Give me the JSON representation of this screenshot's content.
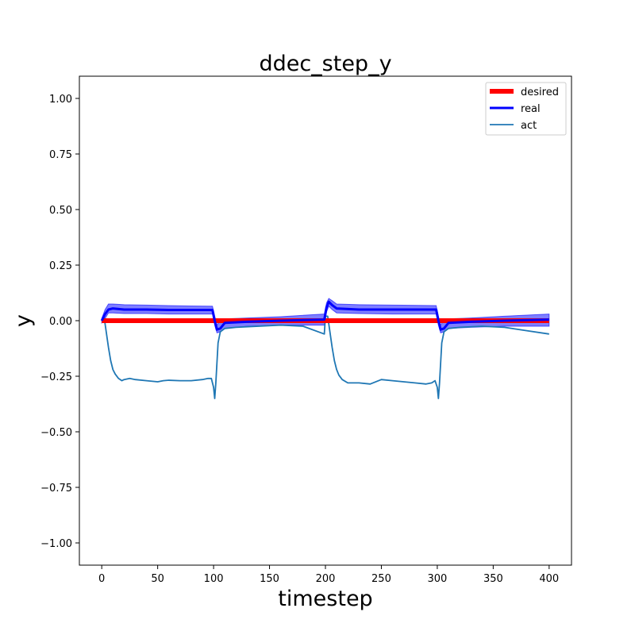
{
  "chart_data": {
    "type": "line",
    "title": "ddec_step_y",
    "xlabel": "timestep",
    "ylabel": "y",
    "xlim": [
      -20,
      420
    ],
    "ylim": [
      -1.1,
      1.1
    ],
    "xticks": [
      0,
      50,
      100,
      150,
      200,
      250,
      300,
      350,
      400
    ],
    "yticks": [
      -1.0,
      -0.75,
      -0.5,
      -0.25,
      0.0,
      0.25,
      0.5,
      0.75,
      1.0
    ],
    "xtick_labels": [
      "0",
      "50",
      "100",
      "150",
      "200",
      "250",
      "300",
      "350",
      "400"
    ],
    "ytick_labels": [
      "−1.00",
      "−0.75",
      "−0.50",
      "−0.25",
      "0.00",
      "0.25",
      "0.50",
      "0.75",
      "1.00"
    ],
    "legend_position": "upper right",
    "grid": false,
    "series": [
      {
        "name": "desired",
        "color": "#ff0000",
        "x": [
          0,
          400
        ],
        "y": [
          0,
          0
        ]
      },
      {
        "name": "real",
        "color": "#0000ff",
        "x": [
          0,
          3,
          6,
          10,
          20,
          40,
          60,
          80,
          99,
          101,
          103,
          106,
          110,
          130,
          160,
          199,
          201,
          203,
          206,
          210,
          230,
          260,
          299,
          301,
          303,
          306,
          310,
          330,
          360,
          400
        ],
        "y": [
          0.0,
          0.03,
          0.05,
          0.055,
          0.05,
          0.05,
          0.048,
          0.048,
          0.048,
          0.0,
          -0.04,
          -0.035,
          -0.01,
          -0.005,
          0.0,
          0.005,
          0.06,
          0.085,
          0.07,
          0.055,
          0.05,
          0.05,
          0.05,
          0.0,
          -0.04,
          -0.035,
          -0.01,
          -0.005,
          0.0,
          0.005
        ]
      },
      {
        "name": "real_band",
        "color": "#0000ff",
        "x": [
          0,
          3,
          6,
          10,
          20,
          40,
          60,
          80,
          99,
          101,
          103,
          106,
          110,
          130,
          160,
          199,
          201,
          203,
          206,
          210,
          230,
          260,
          299,
          301,
          303,
          306,
          310,
          330,
          360,
          400
        ],
        "upper": [
          0.01,
          0.05,
          0.075,
          0.075,
          0.072,
          0.07,
          0.068,
          0.066,
          0.065,
          0.02,
          -0.02,
          0.005,
          0.008,
          0.012,
          0.018,
          0.03,
          0.08,
          0.1,
          0.09,
          0.075,
          0.072,
          0.07,
          0.068,
          0.02,
          -0.02,
          0.005,
          0.008,
          0.012,
          0.02,
          0.03
        ],
        "lower": [
          -0.01,
          0.01,
          0.035,
          0.035,
          0.032,
          0.032,
          0.03,
          0.03,
          0.03,
          -0.02,
          -0.055,
          -0.05,
          -0.035,
          -0.025,
          -0.02,
          -0.02,
          0.04,
          0.065,
          0.05,
          0.035,
          0.032,
          0.03,
          0.03,
          -0.02,
          -0.055,
          -0.05,
          -0.035,
          -0.03,
          -0.025,
          -0.025
        ]
      },
      {
        "name": "act",
        "color": "#1f77b4",
        "x": [
          0,
          2,
          4,
          6,
          8,
          10,
          12,
          15,
          18,
          20,
          25,
          30,
          40,
          50,
          55,
          60,
          70,
          80,
          90,
          95,
          98,
          100,
          101,
          102,
          104,
          106,
          110,
          120,
          140,
          160,
          180,
          199,
          200,
          202,
          204,
          206,
          208,
          210,
          212,
          215,
          220,
          230,
          240,
          250,
          260,
          270,
          280,
          290,
          295,
          298,
          300,
          301,
          302,
          304,
          306,
          310,
          320,
          340,
          360,
          380,
          400
        ],
        "y": [
          0.0,
          0.02,
          -0.05,
          -0.12,
          -0.18,
          -0.22,
          -0.24,
          -0.26,
          -0.27,
          -0.265,
          -0.26,
          -0.265,
          -0.27,
          -0.275,
          -0.27,
          -0.268,
          -0.27,
          -0.27,
          -0.265,
          -0.26,
          -0.26,
          -0.3,
          -0.35,
          -0.28,
          -0.1,
          -0.05,
          -0.035,
          -0.03,
          -0.025,
          -0.02,
          -0.025,
          -0.06,
          0.02,
          0.02,
          -0.05,
          -0.12,
          -0.18,
          -0.22,
          -0.245,
          -0.265,
          -0.28,
          -0.28,
          -0.285,
          -0.265,
          -0.27,
          -0.275,
          -0.28,
          -0.285,
          -0.28,
          -0.27,
          -0.3,
          -0.35,
          -0.28,
          -0.1,
          -0.05,
          -0.035,
          -0.03,
          -0.025,
          -0.03,
          -0.045,
          -0.06
        ]
      }
    ]
  }
}
